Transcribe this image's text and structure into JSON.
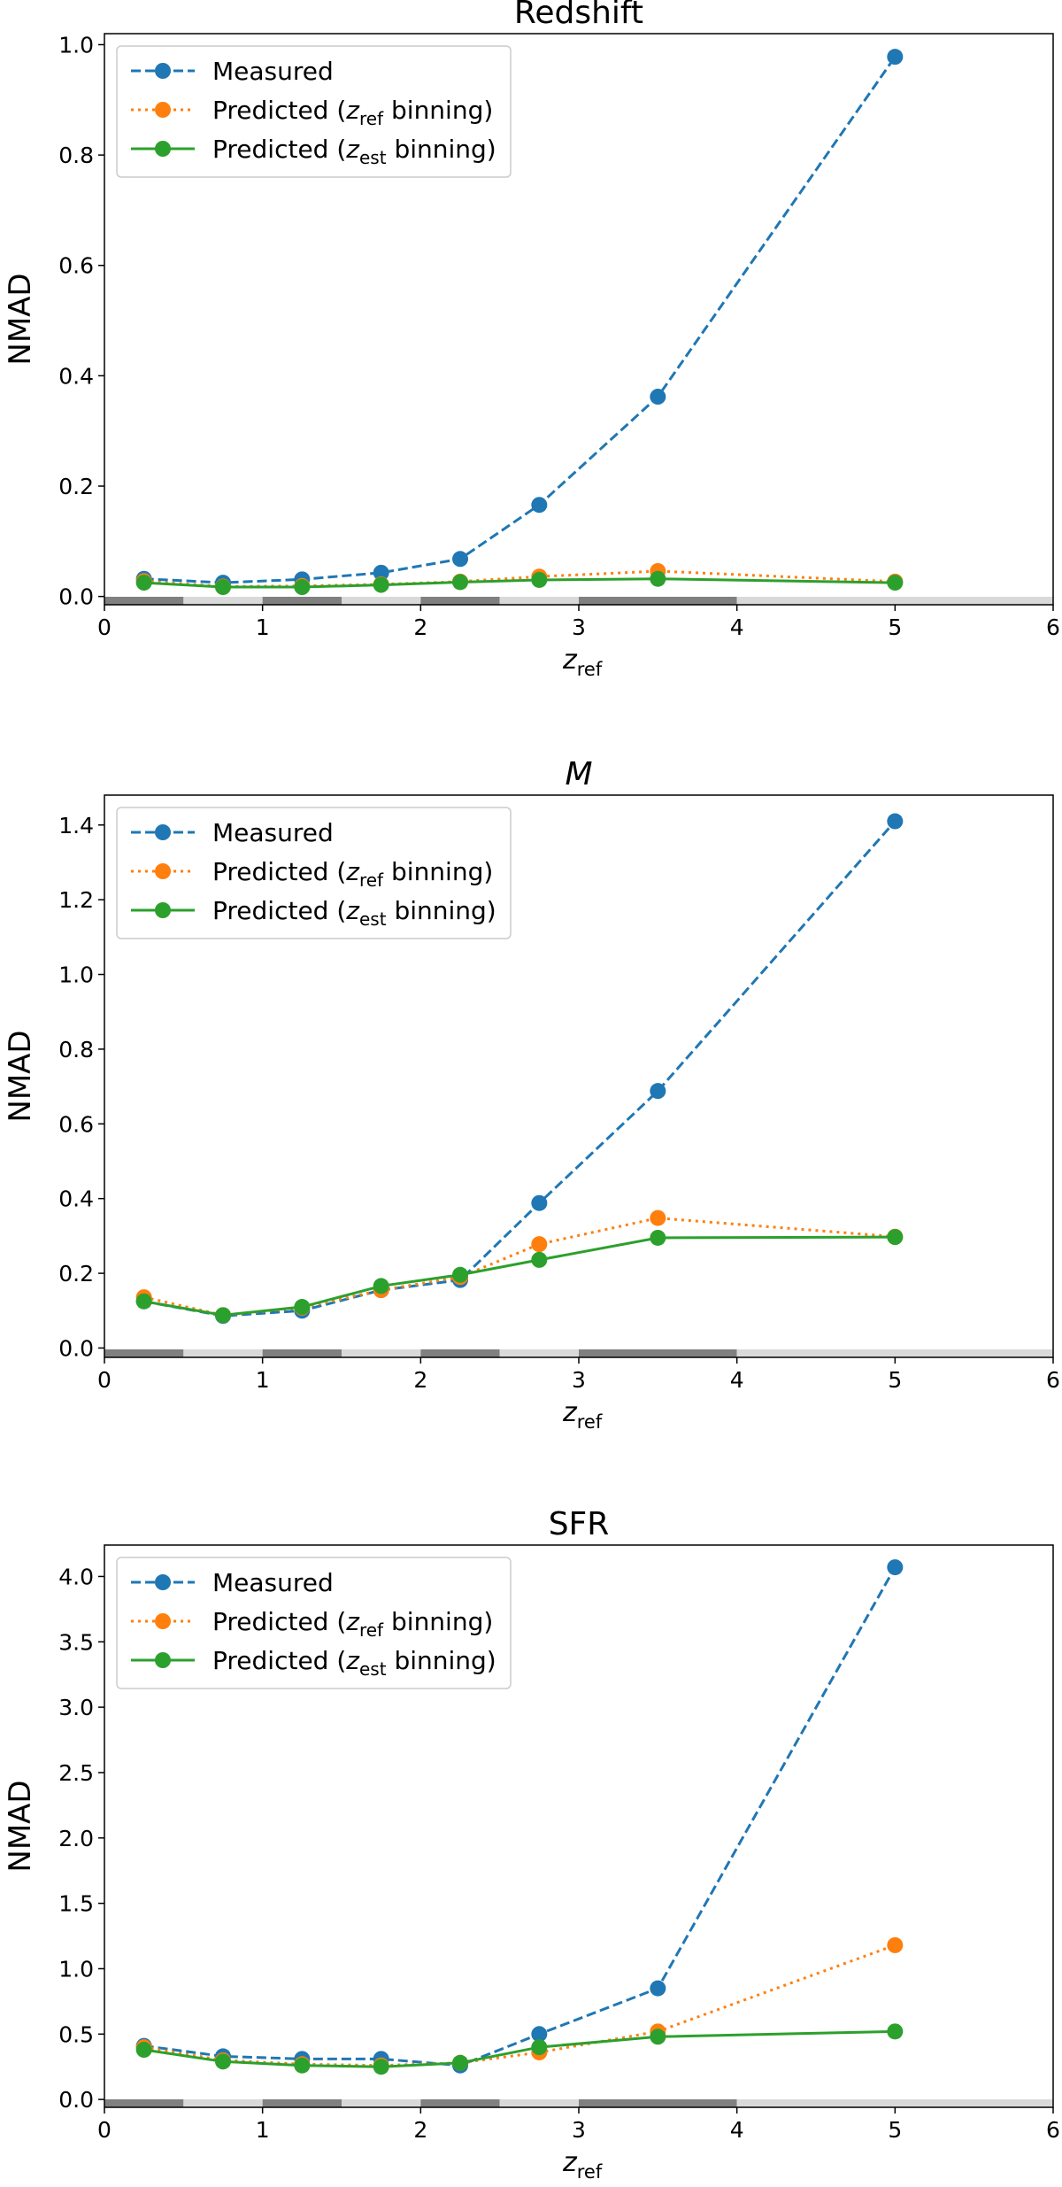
{
  "chart_data": [
    {
      "type": "line",
      "title": "Redshift",
      "title_italic": false,
      "xlabel": "z",
      "xlabel_sub": "ref",
      "ylabel": "NMAD",
      "xlim": [
        0,
        6
      ],
      "ylim": [
        -0.015,
        1.02
      ],
      "xticks": [
        0,
        1,
        2,
        3,
        4,
        5,
        6
      ],
      "yticks": [
        0.0,
        0.2,
        0.4,
        0.6,
        0.8,
        1.0
      ],
      "ytick_labels": [
        "0.0",
        "0.2",
        "0.4",
        "0.6",
        "0.8",
        "1.0"
      ],
      "bin_edges": [
        0,
        0.5,
        1,
        1.5,
        2,
        2.5,
        3,
        4,
        6
      ],
      "legend_position": "top-left",
      "series": [
        {
          "name": "Measured",
          "legend": {
            "pre": "Measured"
          },
          "color": "#1f77b4",
          "dash": "dashed",
          "x": [
            0.25,
            0.75,
            1.25,
            1.75,
            2.25,
            2.75,
            3.5,
            5
          ],
          "values": [
            0.032,
            0.025,
            0.031,
            0.043,
            0.068,
            0.166,
            0.362,
            0.978
          ]
        },
        {
          "name": "Predicted (zref binning)",
          "legend": {
            "pre": "Predicted (",
            "italic": "z",
            "sub": "ref",
            "post": " binning)"
          },
          "color": "#ff7f0e",
          "dash": "dotted",
          "x": [
            0.25,
            0.75,
            1.25,
            1.75,
            2.25,
            2.75,
            3.5,
            5
          ],
          "values": [
            0.028,
            0.018,
            0.019,
            0.022,
            0.027,
            0.036,
            0.046,
            0.027
          ]
        },
        {
          "name": "Predicted (zest binning)",
          "legend": {
            "pre": "Predicted (",
            "italic": "z",
            "sub": "est",
            "post": " binning)"
          },
          "color": "#2ca02c",
          "dash": "solid",
          "x": [
            0.25,
            0.75,
            1.25,
            1.75,
            2.25,
            2.75,
            3.5,
            5
          ],
          "values": [
            0.025,
            0.017,
            0.017,
            0.021,
            0.026,
            0.03,
            0.032,
            0.025
          ]
        }
      ]
    },
    {
      "type": "line",
      "title": "M",
      "title_italic": true,
      "xlabel": "z",
      "xlabel_sub": "ref",
      "ylabel": "NMAD",
      "xlim": [
        0,
        6
      ],
      "ylim": [
        -0.025,
        1.48
      ],
      "xticks": [
        0,
        1,
        2,
        3,
        4,
        5,
        6
      ],
      "yticks": [
        0.0,
        0.2,
        0.4,
        0.6,
        0.8,
        1.0,
        1.2,
        1.4
      ],
      "ytick_labels": [
        "0.0",
        "0.2",
        "0.4",
        "0.6",
        "0.8",
        "1.0",
        "1.2",
        "1.4"
      ],
      "bin_edges": [
        0,
        0.5,
        1,
        1.5,
        2,
        2.5,
        3,
        4,
        6
      ],
      "legend_position": "top-left",
      "series": [
        {
          "name": "Measured",
          "legend": {
            "pre": "Measured"
          },
          "color": "#1f77b4",
          "dash": "dashed",
          "x": [
            0.25,
            0.75,
            1.25,
            1.75,
            2.25,
            2.75,
            3.5,
            5
          ],
          "values": [
            0.125,
            0.086,
            0.1,
            0.155,
            0.182,
            0.388,
            0.688,
            1.41
          ]
        },
        {
          "name": "Predicted (zref binning)",
          "legend": {
            "pre": "Predicted (",
            "italic": "z",
            "sub": "ref",
            "post": " binning)"
          },
          "color": "#ff7f0e",
          "dash": "dotted",
          "x": [
            0.25,
            0.75,
            1.25,
            1.75,
            2.25,
            2.75,
            3.5,
            5
          ],
          "values": [
            0.136,
            0.088,
            0.108,
            0.155,
            0.19,
            0.278,
            0.348,
            0.298
          ]
        },
        {
          "name": "Predicted (zest binning)",
          "legend": {
            "pre": "Predicted (",
            "italic": "z",
            "sub": "est",
            "post": " binning)"
          },
          "color": "#2ca02c",
          "dash": "solid",
          "x": [
            0.25,
            0.75,
            1.25,
            1.75,
            2.25,
            2.75,
            3.5,
            5
          ],
          "values": [
            0.125,
            0.088,
            0.11,
            0.166,
            0.196,
            0.236,
            0.295,
            0.297
          ]
        }
      ]
    },
    {
      "type": "line",
      "title": "SFR",
      "title_italic": false,
      "xlabel": "z",
      "xlabel_sub": "ref",
      "ylabel": "NMAD",
      "xlim": [
        0,
        6
      ],
      "ylim": [
        -0.06,
        4.24
      ],
      "xticks": [
        0,
        1,
        2,
        3,
        4,
        5,
        6
      ],
      "yticks": [
        0.0,
        0.5,
        1.0,
        1.5,
        2.0,
        2.5,
        3.0,
        3.5,
        4.0
      ],
      "ytick_labels": [
        "0.0",
        "0.5",
        "1.0",
        "1.5",
        "2.0",
        "2.5",
        "3.0",
        "3.5",
        "4.0"
      ],
      "bin_edges": [
        0,
        0.5,
        1,
        1.5,
        2,
        2.5,
        3,
        4,
        6
      ],
      "legend_position": "top-left",
      "series": [
        {
          "name": "Measured",
          "legend": {
            "pre": "Measured"
          },
          "color": "#1f77b4",
          "dash": "dashed",
          "x": [
            0.25,
            0.75,
            1.25,
            1.75,
            2.25,
            2.75,
            3.5,
            5
          ],
          "values": [
            0.41,
            0.33,
            0.31,
            0.31,
            0.26,
            0.5,
            0.85,
            4.07
          ]
        },
        {
          "name": "Predicted (zref binning)",
          "legend": {
            "pre": "Predicted (",
            "italic": "z",
            "sub": "ref",
            "post": " binning)"
          },
          "color": "#ff7f0e",
          "dash": "dotted",
          "x": [
            0.25,
            0.75,
            1.25,
            1.75,
            2.25,
            2.75,
            3.5,
            5
          ],
          "values": [
            0.4,
            0.3,
            0.27,
            0.26,
            0.28,
            0.36,
            0.52,
            1.18
          ]
        },
        {
          "name": "Predicted (zest binning)",
          "legend": {
            "pre": "Predicted (",
            "italic": "z",
            "sub": "est",
            "post": " binning)"
          },
          "color": "#2ca02c",
          "dash": "solid",
          "x": [
            0.25,
            0.75,
            1.25,
            1.75,
            2.25,
            2.75,
            3.5,
            5
          ],
          "values": [
            0.38,
            0.29,
            0.26,
            0.25,
            0.28,
            0.4,
            0.48,
            0.52
          ]
        }
      ]
    }
  ]
}
